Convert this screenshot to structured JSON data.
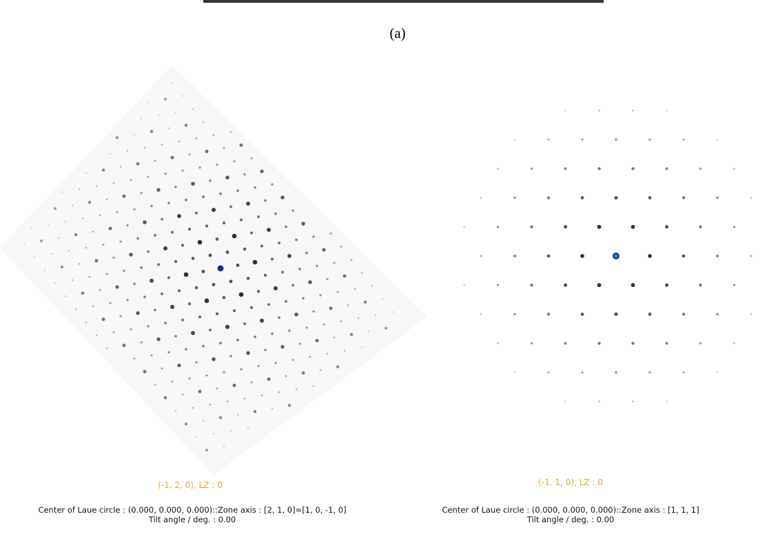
{
  "figure_label": "(a)",
  "panels": [
    {
      "plane": "(-1, 2, 0), LZ : 0",
      "info": "Center of Laue circle : (0.000, 0.000, 0.000)::Zone axis : [2, 1, 0]=[1, 0, -1, 0]",
      "tilt": "Tilt angle / deg. : 0.00"
    },
    {
      "plane": "(-1, 1, 0), LZ : 0",
      "info": "Center of Laue circle : (0.000, 0.000, 0.000)::Zone axis : [1, 1, 1]",
      "tilt": "Tilt angle / deg. : 0.00"
    }
  ]
}
